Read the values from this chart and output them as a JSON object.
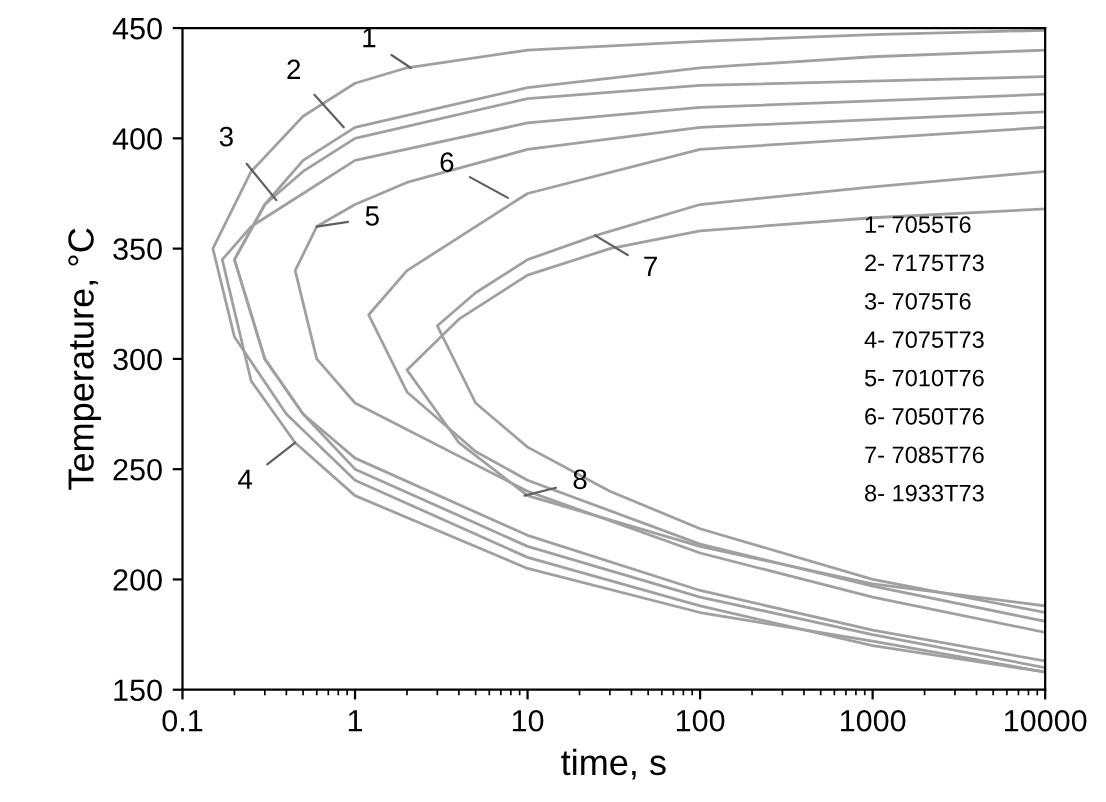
{
  "chart_data": {
    "type": "line",
    "xlabel": "time, s",
    "ylabel": "Temperature, °C",
    "log": "x",
    "xlim": [
      0.1,
      10000
    ],
    "xticks": [
      0.1,
      1,
      10,
      100,
      1000,
      10000
    ],
    "ylim": [
      150,
      450
    ],
    "yticks": [
      150,
      200,
      250,
      300,
      350,
      400,
      450
    ],
    "grid": false,
    "legend": false,
    "marker": "none",
    "line_style": "solid",
    "series": [
      {
        "color": "#a0a0a0",
        "x": [
          10000,
          1000,
          100,
          10,
          2,
          1,
          0.5,
          0.25,
          0.15,
          0.2,
          0.4,
          1,
          10,
          100,
          1000,
          10000
        ],
        "values": [
          449,
          447,
          444,
          440,
          432,
          425,
          410,
          385,
          350,
          310,
          275,
          245,
          210,
          188,
          170,
          158
        ]
      },
      {
        "color": "#a0a0a0",
        "x": [
          10000,
          1000,
          100,
          10,
          1,
          0.5,
          0.3,
          0.2,
          0.3,
          0.5,
          1,
          10,
          100,
          1000,
          10000
        ],
        "values": [
          440,
          437,
          432,
          423,
          405,
          390,
          370,
          345,
          300,
          275,
          255,
          220,
          195,
          177,
          163
        ]
      },
      {
        "color": "#a0a0a0",
        "x": [
          10000,
          100,
          10,
          1,
          0.5,
          0.3,
          0.2,
          0.3,
          0.5,
          1,
          10,
          100,
          1000,
          10000
        ],
        "values": [
          428,
          424,
          418,
          400,
          385,
          370,
          345,
          300,
          275,
          250,
          215,
          192,
          175,
          160
        ]
      },
      {
        "color": "#a0a0a0",
        "x": [
          10000,
          100,
          10,
          1,
          0.5,
          0.25,
          0.17,
          0.25,
          0.45,
          1,
          10,
          100,
          1000,
          10000
        ],
        "values": [
          420,
          414,
          407,
          390,
          375,
          360,
          345,
          290,
          262,
          238,
          205,
          185,
          172,
          158
        ]
      },
      {
        "color": "#a0a0a0",
        "x": [
          10000,
          100,
          10,
          2,
          1,
          0.6,
          0.45,
          0.6,
          1,
          10,
          100,
          1000,
          10000
        ],
        "values": [
          412,
          405,
          395,
          380,
          370,
          360,
          340,
          300,
          280,
          240,
          212,
          192,
          176
        ]
      },
      {
        "color": "#a0a0a0",
        "x": [
          10000,
          100,
          10,
          5,
          2,
          1.2,
          2,
          5,
          10,
          100,
          1000,
          10000
        ],
        "values": [
          405,
          395,
          375,
          360,
          340,
          320,
          285,
          258,
          245,
          216,
          197,
          181
        ]
      },
      {
        "color": "#a0a0a0",
        "x": [
          10000,
          1000,
          100,
          25,
          10,
          5,
          3,
          5,
          10,
          30,
          100,
          1000,
          10000
        ],
        "values": [
          385,
          378,
          370,
          356,
          345,
          330,
          315,
          280,
          260,
          240,
          223,
          200,
          185
        ]
      },
      {
        "color": "#a0a0a0",
        "x": [
          10000,
          1000,
          100,
          30,
          10,
          4,
          2,
          4,
          10,
          100,
          1000,
          10000
        ],
        "values": [
          368,
          364,
          358,
          350,
          338,
          318,
          295,
          262,
          238,
          215,
          198,
          188
        ]
      }
    ],
    "annotations": [
      {
        "text": "1",
        "x": 2.1,
        "y": 432
      },
      {
        "text": "2",
        "x": 0.86,
        "y": 405
      },
      {
        "text": "3",
        "x": 0.35,
        "y": 372
      },
      {
        "text": "4",
        "x": 0.45,
        "y": 262
      },
      {
        "text": "5",
        "x": 0.6,
        "y": 360
      },
      {
        "text": "6",
        "x": 7.7,
        "y": 373
      },
      {
        "text": "7",
        "x": 24.6,
        "y": 356
      },
      {
        "text": "8",
        "x": 9.6,
        "y": 238
      },
      "1- 7055T6",
      "2- 7175T73",
      "3- 7075T6",
      "4- 7075T73",
      "5- 7010T76",
      "6- 7050T76",
      "7- 7085T76",
      "8- 1933T73"
    ]
  }
}
